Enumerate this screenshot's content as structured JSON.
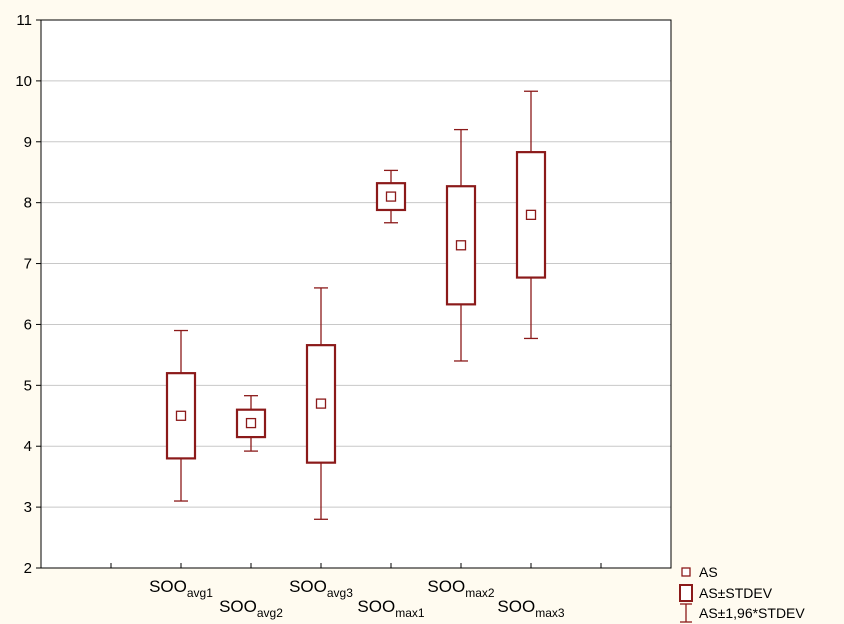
{
  "chart_data": {
    "type": "box",
    "ylim": [
      2,
      11
    ],
    "y_ticks": [
      2,
      3,
      4,
      5,
      6,
      7,
      8,
      9,
      10,
      11
    ],
    "grid": true,
    "legend_position": "bottom-right",
    "series_color": "#8b1a1a",
    "categories": [
      {
        "base": "SOO",
        "sub": "avg1"
      },
      {
        "base": "SOO",
        "sub": "avg2"
      },
      {
        "base": "SOO",
        "sub": "avg3"
      },
      {
        "base": "SOO",
        "sub": "max1"
      },
      {
        "base": "SOO",
        "sub": "max2"
      },
      {
        "base": "SOO",
        "sub": "max3"
      }
    ],
    "boxes": [
      {
        "mean": 4.5,
        "box_low": 3.8,
        "box_high": 5.2,
        "whisker_low": 3.1,
        "whisker_high": 5.9
      },
      {
        "mean": 4.38,
        "box_low": 4.15,
        "box_high": 4.6,
        "whisker_low": 3.92,
        "whisker_high": 4.83
      },
      {
        "mean": 4.7,
        "box_low": 3.73,
        "box_high": 5.66,
        "whisker_low": 2.8,
        "whisker_high": 6.6
      },
      {
        "mean": 8.1,
        "box_low": 7.88,
        "box_high": 8.32,
        "whisker_low": 7.67,
        "whisker_high": 8.53
      },
      {
        "mean": 7.3,
        "box_low": 6.33,
        "box_high": 8.27,
        "whisker_low": 5.4,
        "whisker_high": 9.2
      },
      {
        "mean": 7.8,
        "box_low": 6.77,
        "box_high": 8.83,
        "whisker_low": 5.77,
        "whisker_high": 9.83
      }
    ],
    "legend": [
      {
        "symbol": "mean",
        "label": "AS"
      },
      {
        "symbol": "box",
        "label": "AS±STDEV"
      },
      {
        "symbol": "whisker",
        "label": "AS±1,96*STDEV"
      }
    ]
  }
}
